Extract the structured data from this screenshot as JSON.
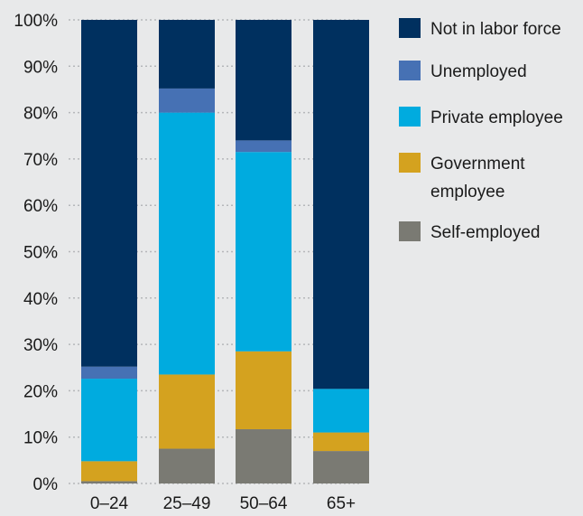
{
  "chart_data": {
    "type": "bar",
    "stacked": true,
    "normalized": true,
    "categories": [
      "0–24",
      "25–49",
      "50–64",
      "65+"
    ],
    "series": [
      {
        "name": "Self-employed",
        "color": "#7a7a73",
        "values": [
          0.5,
          7.5,
          11.7,
          7.0
        ]
      },
      {
        "name": "Government employee",
        "color": "#d4a21f",
        "values": [
          4.3,
          16.0,
          16.8,
          4.0
        ]
      },
      {
        "name": "Private employee",
        "color": "#00abdf",
        "values": [
          17.8,
          56.5,
          43.0,
          9.4
        ]
      },
      {
        "name": "Unemployed",
        "color": "#4671b4",
        "values": [
          2.6,
          5.2,
          2.5,
          0.0
        ]
      },
      {
        "name": "Not in labor force",
        "color": "#00305f",
        "values": [
          74.8,
          14.8,
          26.0,
          79.6
        ]
      }
    ],
    "legend": [
      "Not in labor force",
      "Unemployed",
      "Private employee",
      "Government employee",
      "Self-employed"
    ],
    "legend_position": "right",
    "title": "",
    "xlabel": "",
    "ylabel": "",
    "ylim": [
      0,
      100
    ],
    "yticks": [
      "0%",
      "10%",
      "20%",
      "30%",
      "40%",
      "50%",
      "60%",
      "70%",
      "80%",
      "90%",
      "100%"
    ],
    "grid": "horizontal-dotted"
  }
}
